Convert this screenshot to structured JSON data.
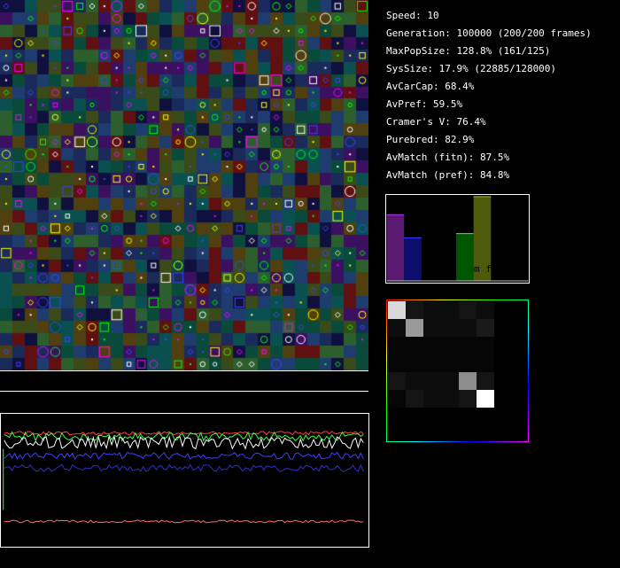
{
  "stats": {
    "speed": "Speed: 10",
    "generation": "Generation: 100000 (200/200 frames)",
    "max_pop_size": "MaxPopSize: 128.8% (161/125)",
    "sys_size": "SysSize: 17.9% (22885/128000)",
    "av_car_cap": "AvCarCap: 68.4%",
    "av_pref": "AvPref: 59.5%",
    "cramers_v": "Cramer's V: 76.4%",
    "purebred": "Purebred: 82.9%",
    "av_match_fitn": "AvMatch (fitn): 87.5%",
    "av_match_pref": "AvMatch (pref): 84.8%"
  },
  "bar_panel": {
    "label": "m f",
    "bars": [
      {
        "color": "#5a1a72",
        "top_color": "#c040ff",
        "level": 0.77
      },
      {
        "color": "#0d0d6e",
        "top_color": "#3a3aff",
        "level": 0.5
      },
      {
        "color": "#005500",
        "top_color": "#30ff30",
        "level": 0.55
      },
      {
        "color": "#4f5a0a",
        "top_color": "#bbd050",
        "level": 0.98
      }
    ]
  },
  "heatmap": {
    "size": 6,
    "cells": [
      [
        0.85,
        0.08,
        0.05,
        0.05,
        0.08,
        0.05
      ],
      [
        0.05,
        0.6,
        0.05,
        0.05,
        0.05,
        0.1
      ],
      [
        0.02,
        0.02,
        0.02,
        0.02,
        0.02,
        0.02
      ],
      [
        0.02,
        0.02,
        0.02,
        0.02,
        0.02,
        0.02
      ],
      [
        0.08,
        0.05,
        0.05,
        0.05,
        0.55,
        0.08
      ],
      [
        0.02,
        0.08,
        0.05,
        0.05,
        0.08,
        1.0
      ]
    ],
    "border_colors": [
      "#ff0000",
      "#ffff00",
      "#00ff00",
      "#00ffff",
      "#0000ff",
      "#ff00ff"
    ]
  },
  "world_grid": {
    "cols": 30,
    "rows": 30,
    "palette": [
      "#1e3c6e",
      "#0a5050",
      "#2c5f2d",
      "#504010",
      "#601010",
      "#3c1060",
      "#10103e",
      "#3a4a18",
      "#1a2a5a",
      "#0a4a3a"
    ],
    "marker_colors": [
      "#ffff00",
      "#ff00ff",
      "#00ff00",
      "#4040ff",
      "#ffffff"
    ]
  },
  "history_plot": {
    "series_colors": [
      "#ff4040",
      "#40ff40",
      "#ffffff",
      "#4040ff",
      "#3030d0",
      "#ff7060"
    ]
  }
}
